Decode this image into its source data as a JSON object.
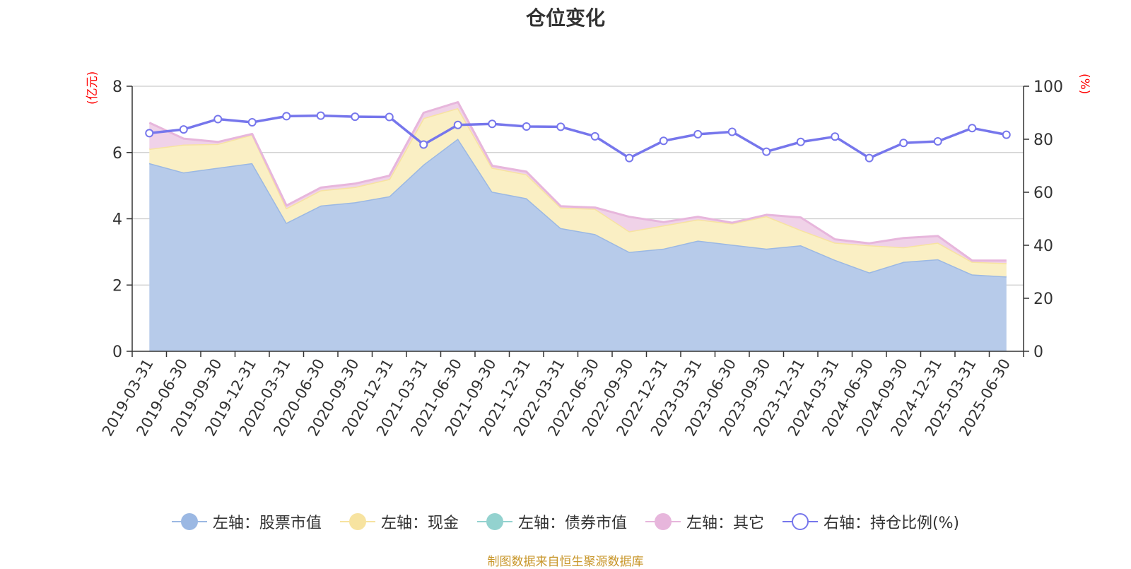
{
  "title": "仓位变化",
  "source_note": "制图数据来自恒生聚源数据库",
  "colors": {
    "stock": "#9bb8e3",
    "stock_fill": "#b7cbea",
    "cash": "#f7e3a0",
    "cash_fill": "#faefc4",
    "bond": "#93d2cf",
    "other": "#e7b6dc",
    "other_fill": "#f0d2e8",
    "ratio": "#7676ec",
    "unit_text": "#ff0000",
    "source_text": "#c8962a"
  },
  "chart_data": {
    "type": "area",
    "title": "仓位变化",
    "left_axis": {
      "unit": "(亿元)",
      "range": [
        0,
        8
      ],
      "ticks": [
        "0",
        "2",
        "4",
        "6",
        "8"
      ]
    },
    "right_axis": {
      "unit": "(%)",
      "range": [
        0,
        100
      ],
      "ticks": [
        "0",
        "20",
        "40",
        "60",
        "80",
        "100"
      ]
    },
    "grid": true,
    "legend_position": "bottom",
    "x": [
      "2019-03-31",
      "2019-06-30",
      "2019-09-30",
      "2019-12-31",
      "2020-03-31",
      "2020-06-30",
      "2020-09-30",
      "2020-12-31",
      "2021-03-31",
      "2021-06-30",
      "2021-09-30",
      "2021-12-31",
      "2022-03-31",
      "2022-06-30",
      "2022-09-30",
      "2022-12-31",
      "2023-03-31",
      "2023-06-30",
      "2023-09-30",
      "2023-12-31",
      "2024-03-31",
      "2024-06-30",
      "2024-09-30",
      "2024-12-31",
      "2025-03-31",
      "2025-06-30"
    ],
    "series": [
      {
        "name": "左轴：股票市值",
        "axis": "left",
        "stack": true,
        "values": [
          5.68,
          5.4,
          5.54,
          5.68,
          3.88,
          4.4,
          4.5,
          4.68,
          5.64,
          6.42,
          4.82,
          4.62,
          3.72,
          3.54,
          3.0,
          3.1,
          3.34,
          3.22,
          3.1,
          3.2,
          2.76,
          2.38,
          2.7,
          2.78,
          2.32,
          2.26
        ]
      },
      {
        "name": "左轴：现金",
        "axis": "left",
        "stack": true,
        "values": [
          0.43,
          0.84,
          0.72,
          0.86,
          0.44,
          0.46,
          0.46,
          0.52,
          1.4,
          0.92,
          0.72,
          0.72,
          0.62,
          0.76,
          0.62,
          0.7,
          0.64,
          0.64,
          0.98,
          0.46,
          0.52,
          0.82,
          0.44,
          0.5,
          0.38,
          0.4
        ]
      },
      {
        "name": "左轴：债券市值",
        "axis": "left",
        "stack": true,
        "values": [
          0,
          0,
          0,
          0,
          0,
          0,
          0,
          0,
          0,
          0,
          0,
          0,
          0,
          0,
          0,
          0,
          0,
          0,
          0,
          0,
          0,
          0,
          0,
          0,
          0,
          0
        ]
      },
      {
        "name": "左轴：其它",
        "axis": "left",
        "stack": true,
        "values": [
          0.79,
          0.18,
          0.06,
          0.02,
          0.08,
          0.08,
          0.1,
          0.1,
          0.16,
          0.18,
          0.06,
          0.08,
          0.04,
          0.04,
          0.44,
          0.1,
          0.08,
          0.02,
          0.04,
          0.38,
          0.1,
          0.06,
          0.28,
          0.2,
          0.04,
          0.08
        ]
      },
      {
        "name": "右轴：持仓比例(%)",
        "axis": "right",
        "stack": false,
        "values": [
          82.3,
          83.7,
          87.6,
          86.4,
          88.7,
          88.9,
          88.5,
          88.4,
          78.0,
          85.4,
          85.8,
          84.8,
          84.7,
          81.1,
          72.9,
          79.4,
          81.9,
          82.8,
          75.3,
          79.0,
          81.0,
          72.9,
          78.6,
          79.2,
          84.2,
          81.7
        ]
      }
    ]
  }
}
